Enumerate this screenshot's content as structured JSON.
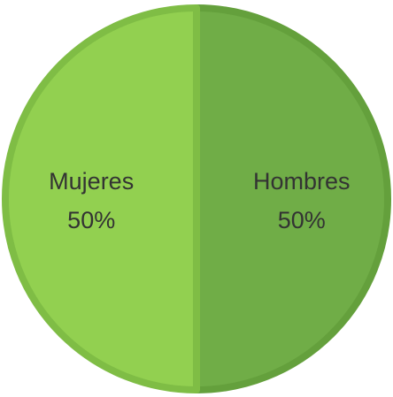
{
  "chart_data": {
    "type": "pie",
    "categories": [
      "Hombres",
      "Mujeres"
    ],
    "values": [
      50,
      50
    ],
    "value_labels": [
      "50%",
      "50%"
    ],
    "colors": [
      "#70ad47",
      "#92d050"
    ],
    "edge_colors": [
      "#64a03c",
      "#7fbd45"
    ]
  }
}
